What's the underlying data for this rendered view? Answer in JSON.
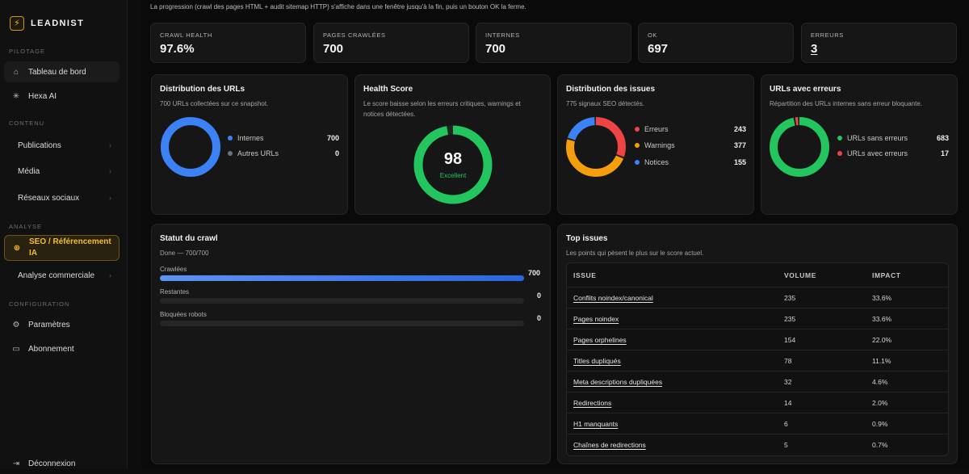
{
  "app": {
    "name": "LEADNIST"
  },
  "sidebar": {
    "sections": {
      "pilotage": "PILOTAGE",
      "contenu": "CONTENU",
      "analyse": "ANALYSE",
      "configuration": "CONFIGURATION"
    },
    "items": {
      "dashboard": "Tableau de bord",
      "hexa": "Hexa AI",
      "publications": "Publications",
      "media": "Média",
      "social": "Réseaux sociaux",
      "seo_line1": "SEO / Référencement",
      "seo_line2": "IA",
      "commercial": "Analyse commerciale",
      "settings": "Paramètres",
      "subscription": "Abonnement",
      "logout": "Déconnexion"
    }
  },
  "note": "La progression (crawl des pages HTML + audit sitemap HTTP) s'affiche dans une fenêtre jusqu'à la fin, puis un bouton OK la ferme.",
  "stats": [
    {
      "label": "CRAWL HEALTH",
      "value": "97.6%"
    },
    {
      "label": "PAGES CRAWLÉES",
      "value": "700"
    },
    {
      "label": "INTERNES",
      "value": "700"
    },
    {
      "label": "OK",
      "value": "697"
    },
    {
      "label": "ERREURS",
      "value": "3"
    }
  ],
  "url_dist": {
    "title": "Distribution des URLs",
    "subtitle": "700 URLs collectées sur ce snapshot.",
    "legend": [
      {
        "label": "Internes",
        "value": "700",
        "color": "#3b82f6"
      },
      {
        "label": "Autres URLs",
        "value": "0",
        "color": "#6b7280"
      }
    ],
    "values": [
      700,
      0
    ]
  },
  "health": {
    "title": "Health Score",
    "subtitle": "Le score baisse selon les erreurs critiques, warnings et notices détectées.",
    "score": "98",
    "label": "Excellent",
    "color": "#22c55e"
  },
  "issues_dist": {
    "title": "Distribution des issues",
    "subtitle": "775 signaux SEO détectés.",
    "legend": [
      {
        "label": "Erreurs",
        "value": "243",
        "color": "#ef4444"
      },
      {
        "label": "Warnings",
        "value": "377",
        "color": "#f59e0b"
      },
      {
        "label": "Notices",
        "value": "155",
        "color": "#3b82f6"
      }
    ],
    "values": [
      243,
      377,
      155
    ]
  },
  "urls_errors": {
    "title": "URLs avec erreurs",
    "subtitle": "Répartition des URLs internes sans erreur bloquante.",
    "legend": [
      {
        "label": "URLs sans erreurs",
        "value": "683",
        "color": "#22c55e"
      },
      {
        "label": "URLs avec erreurs",
        "value": "17",
        "color": "#ef4444"
      }
    ],
    "values": [
      683,
      17
    ]
  },
  "crawl": {
    "title": "Statut du crawl",
    "subtitle": "Done — 700/700",
    "bars": [
      {
        "label": "Crawlées",
        "value": "700",
        "fraction": 1
      },
      {
        "label": "Restantes",
        "value": "0",
        "fraction": 0
      },
      {
        "label": "Bloquées robots",
        "value": "0",
        "fraction": 0
      }
    ]
  },
  "top_issues": {
    "title": "Top issues",
    "subtitle": "Les points qui pèsent le plus sur le score actuel.",
    "headers": [
      "ISSUE",
      "VOLUME",
      "IMPACT"
    ],
    "rows": [
      {
        "issue": "Conflits noindex/canonical",
        "volume": "235",
        "impact": "33.6%"
      },
      {
        "issue": "Pages noindex",
        "volume": "235",
        "impact": "33.6%"
      },
      {
        "issue": "Pages orphelines",
        "volume": "154",
        "impact": "22.0%"
      },
      {
        "issue": "Titles dupliqués",
        "volume": "78",
        "impact": "11.1%"
      },
      {
        "issue": "Meta descriptions dupliquées",
        "volume": "32",
        "impact": "4.6%"
      },
      {
        "issue": "Redirections",
        "volume": "14",
        "impact": "2.0%"
      },
      {
        "issue": "H1 manquants",
        "volume": "6",
        "impact": "0.9%"
      },
      {
        "issue": "Chaînes de redirections",
        "volume": "5",
        "impact": "0.7%"
      }
    ]
  }
}
